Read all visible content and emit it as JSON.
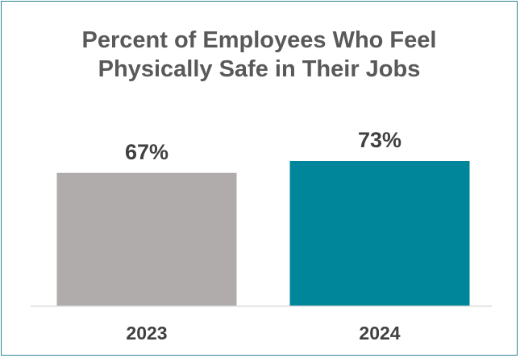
{
  "chart_data": {
    "type": "bar",
    "title_lines": [
      "Percent of Employees Who Feel",
      "Physically Safe in Their Jobs"
    ],
    "categories": [
      "2023",
      "2024"
    ],
    "values": [
      67,
      73
    ],
    "value_labels": [
      "67%",
      "73%"
    ],
    "colors": [
      "#b0acab",
      "#00869a"
    ],
    "axis_color": "#d9d9d9",
    "ylim": [
      0,
      100
    ],
    "grid": false,
    "legend": "none"
  }
}
